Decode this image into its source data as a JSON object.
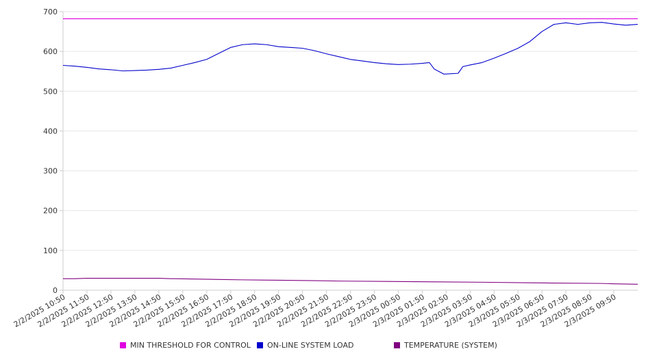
{
  "chart_data": {
    "type": "line",
    "title": "",
    "xlabel": "",
    "ylabel": "",
    "ylim": [
      0,
      700
    ],
    "yticks": [
      0,
      100,
      200,
      300,
      400,
      500,
      600,
      700
    ],
    "grid": true,
    "legend_position": "bottom",
    "x_tick_labels": [
      "2/2/2025 10:50",
      "2/2/2025 11:50",
      "2/2/2025 12:50",
      "2/2/2025 13:50",
      "2/2/2025 14:50",
      "2/2/2025 15:50",
      "2/2/2025 16:50",
      "2/2/2025 17:50",
      "2/2/2025 18:50",
      "2/2/2025 19:50",
      "2/2/2025 20:50",
      "2/2/2025 21:50",
      "2/2/2025 22:50",
      "2/2/2025 23:50",
      "2/3/2025 00:50",
      "2/3/2025 01:50",
      "2/3/2025 02:50",
      "2/3/2025 03:50",
      "2/3/2025 04:50",
      "2/3/2025 05:50",
      "2/3/2025 06:50",
      "2/3/2025 07:50",
      "2/3/2025 08:50",
      "2/3/2025 09:50"
    ],
    "series": [
      {
        "name": "MIN THRESHOLD FOR CONTROL",
        "color": "#e000e0",
        "points": [
          [
            0,
            682
          ],
          [
            24,
            682
          ]
        ]
      },
      {
        "name": "ON-LINE SYSTEM LOAD",
        "color": "#0000cc",
        "points": [
          [
            0,
            565
          ],
          [
            0.5,
            563
          ],
          [
            1,
            560
          ],
          [
            1.5,
            556
          ],
          [
            2,
            554
          ],
          [
            2.5,
            551
          ],
          [
            3,
            552
          ],
          [
            3.5,
            553
          ],
          [
            4,
            555
          ],
          [
            4.5,
            558
          ],
          [
            5,
            565
          ],
          [
            5.5,
            572
          ],
          [
            6,
            580
          ],
          [
            6.5,
            595
          ],
          [
            7,
            610
          ],
          [
            7.5,
            617
          ],
          [
            8,
            619
          ],
          [
            8.5,
            617
          ],
          [
            9,
            612
          ],
          [
            9.5,
            610
          ],
          [
            10,
            608
          ],
          [
            10.5,
            602
          ],
          [
            11,
            594
          ],
          [
            11.5,
            587
          ],
          [
            12,
            580
          ],
          [
            12.5,
            576
          ],
          [
            13,
            572
          ],
          [
            13.5,
            569
          ],
          [
            14,
            567
          ],
          [
            14.5,
            568
          ],
          [
            15,
            570
          ],
          [
            15.3,
            572
          ],
          [
            15.5,
            556
          ],
          [
            15.9,
            543
          ],
          [
            16.5,
            545
          ],
          [
            16.7,
            562
          ],
          [
            17,
            566
          ],
          [
            17.5,
            572
          ],
          [
            18,
            583
          ],
          [
            18.5,
            595
          ],
          [
            19,
            608
          ],
          [
            19.5,
            625
          ],
          [
            20,
            650
          ],
          [
            20.5,
            668
          ],
          [
            21,
            672
          ],
          [
            21.5,
            668
          ],
          [
            22,
            672
          ],
          [
            22.5,
            673
          ],
          [
            23,
            669
          ],
          [
            23.5,
            666
          ],
          [
            24,
            668
          ]
        ]
      },
      {
        "name": "TEMPERATURE (SYSTEM)",
        "color": "#800080",
        "points": [
          [
            0,
            29
          ],
          [
            0.5,
            29
          ],
          [
            1,
            30
          ],
          [
            4,
            30
          ],
          [
            4.5,
            29
          ],
          [
            5.5,
            28
          ],
          [
            6.5,
            27
          ],
          [
            7.5,
            26
          ],
          [
            9,
            25
          ],
          [
            10.5,
            24
          ],
          [
            11.5,
            23
          ],
          [
            13.5,
            22
          ],
          [
            15.5,
            21
          ],
          [
            17.5,
            20
          ],
          [
            20.5,
            18
          ],
          [
            22.5,
            17
          ],
          [
            23,
            16
          ],
          [
            24,
            15
          ]
        ]
      }
    ]
  }
}
